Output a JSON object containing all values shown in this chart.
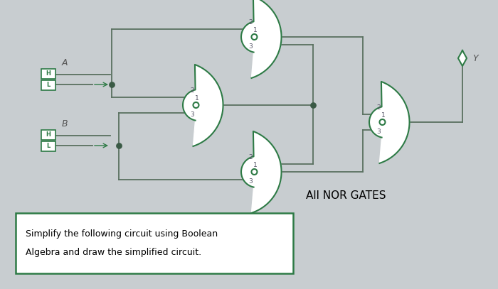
{
  "background_color": "#c8cdd0",
  "gate_color": "#2d7a45",
  "wire_color": "#5a7060",
  "dot_color": "#3a5a45",
  "text_color": "#333333",
  "box_color": "#2d7a45",
  "title": "All NOR GATES",
  "question_text_1": "Simplify the following circuit using Boolean",
  "question_text_2": "Algebra and draw the simplified circuit.",
  "input_A_label": "A",
  "input_B_label": "B",
  "output_label": "Y"
}
